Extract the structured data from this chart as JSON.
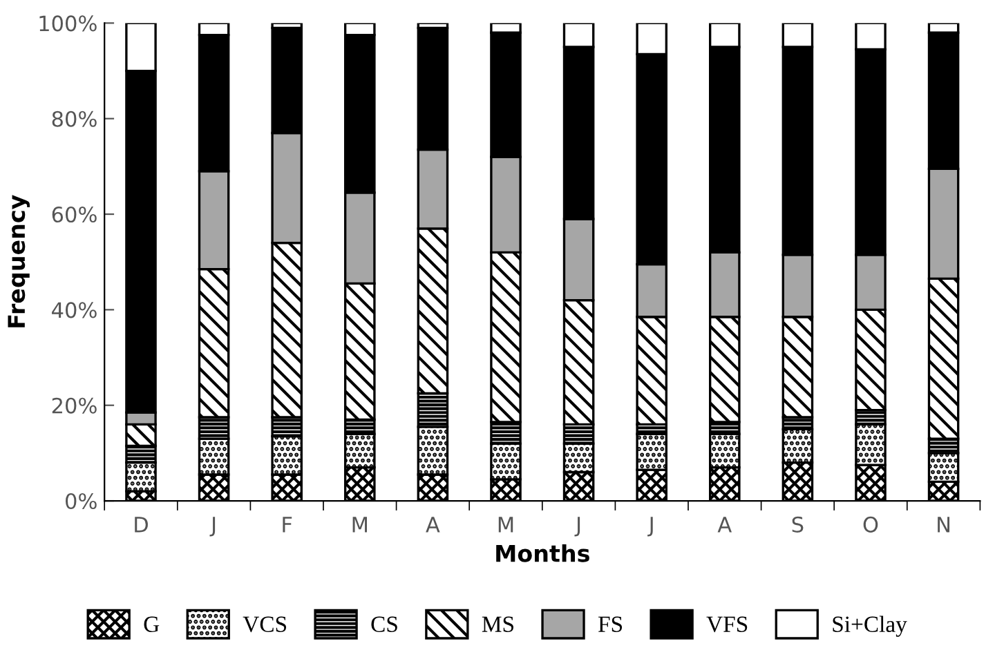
{
  "chart_data": {
    "type": "bar",
    "stacked": true,
    "xlabel": "Months",
    "ylabel": "Frequency",
    "categories": [
      "D",
      "J",
      "F",
      "M",
      "A",
      "M",
      "J",
      "J",
      "A",
      "S",
      "O",
      "N"
    ],
    "ylim": [
      0,
      100
    ],
    "yticks": [
      {
        "value": 0,
        "label": "0%"
      },
      {
        "value": 20,
        "label": "20%"
      },
      {
        "value": 40,
        "label": "40%"
      },
      {
        "value": 60,
        "label": "60%"
      },
      {
        "value": 80,
        "label": "80%"
      },
      {
        "value": 100,
        "label": "100%"
      }
    ],
    "grid": false,
    "legend": "bottom",
    "series": [
      {
        "name": "G",
        "color": "#000000",
        "values": [
          2,
          5.5,
          5.5,
          7,
          5.5,
          4.5,
          6,
          6.5,
          7,
          8,
          7.5,
          4
        ]
      },
      {
        "name": "VCS",
        "color": "#000000",
        "values": [
          6,
          7.5,
          8,
          7,
          10,
          7.5,
          6,
          7.5,
          7,
          7,
          8.5,
          6
        ]
      },
      {
        "name": "CS",
        "color": "#000000",
        "values": [
          3.5,
          4.5,
          4,
          3,
          7,
          4.5,
          4,
          2,
          2.5,
          2.5,
          3,
          3
        ]
      },
      {
        "name": "MS",
        "color": "#000000",
        "values": [
          4.5,
          31,
          36.5,
          28.5,
          34.5,
          35.5,
          26,
          22.5,
          22,
          21,
          21,
          33.5
        ]
      },
      {
        "name": "FS",
        "color": "#a6a6a6",
        "values": [
          2.5,
          20.5,
          23,
          19,
          16.5,
          20,
          17,
          11,
          13.5,
          13,
          11.5,
          23
        ]
      },
      {
        "name": "VFS",
        "color": "#000000",
        "values": [
          71.5,
          28.5,
          22,
          33,
          25.5,
          26,
          36,
          44,
          43,
          43.5,
          43,
          28.5
        ]
      },
      {
        "name": "Si+Clay",
        "color": "#ffffff",
        "values": [
          10,
          2.5,
          1,
          2.5,
          1,
          2,
          5,
          6.5,
          5,
          5,
          5.5,
          2
        ]
      }
    ]
  }
}
